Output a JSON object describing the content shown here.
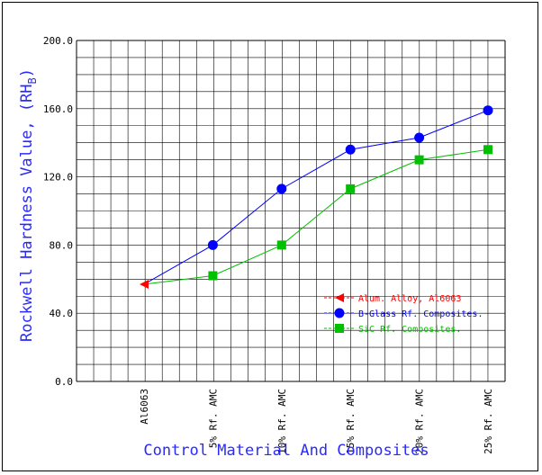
{
  "chart_data": {
    "type": "line",
    "title": "",
    "xlabel": "Control Material And Composites",
    "ylabel": "Rockwell Hardness Value, (RH",
    "ylabel_sub": "B",
    "ylabel_close": ")",
    "ylim": [
      0,
      200
    ],
    "ytick_values": [
      0,
      40,
      80,
      120,
      160,
      200
    ],
    "ytick_labels": [
      "0.0",
      "40.0",
      "80.0",
      "120.0",
      "160.0",
      "200.0"
    ],
    "grid": true,
    "legend_position": "right-middle",
    "categories": [
      "Al6063",
      "5% Rf. AMC",
      "10% Rf. AMC",
      "15% Rf. AMC",
      "20% Rf. AMC",
      "25% Rf. AMC"
    ],
    "series": [
      {
        "name": "Alum. Alloy, Al6063",
        "color": "#ff0000",
        "marker": "triangle-left",
        "values": [
          57,
          null,
          null,
          null,
          null,
          null
        ]
      },
      {
        "name": "B-Glass Rf. Composites.",
        "color": "#0000ff",
        "marker": "circle",
        "values": [
          57,
          80,
          113,
          136,
          143,
          159
        ]
      },
      {
        "name": "SiC Rf. Composites.",
        "color": "#00c000",
        "marker": "square",
        "values": [
          57,
          62,
          80,
          113,
          130,
          136
        ]
      }
    ]
  }
}
